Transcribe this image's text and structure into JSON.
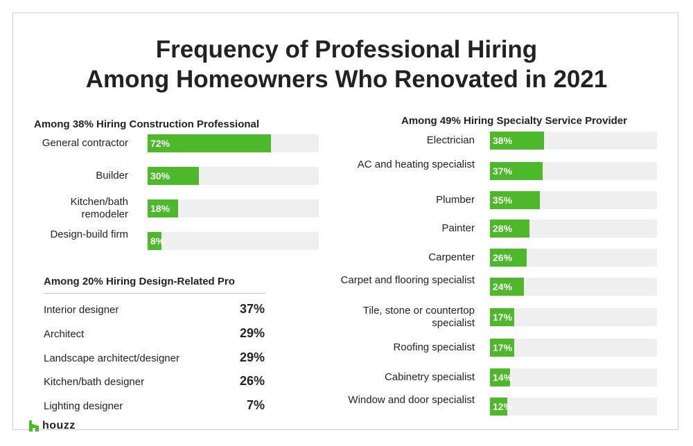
{
  "title": {
    "line1": "Frequency of Professional Hiring",
    "line2": "Among Homeowners Who Renovated in 2021"
  },
  "colors": {
    "bar": "#4cb82a",
    "track": "#efefef",
    "logo": "#4cb82a"
  },
  "logo_text": "houzz",
  "chart_data": [
    {
      "type": "bar",
      "orientation": "horizontal",
      "title": "Among 38% Hiring Construction Professional",
      "categories": [
        "General contractor",
        "Builder",
        "Kitchen/bath remodeler",
        "Design-build firm"
      ],
      "values": [
        72,
        30,
        18,
        8
      ],
      "value_labels": [
        "72%",
        "30%",
        "18%",
        "8%"
      ],
      "xlim": [
        0,
        100
      ],
      "grid": false
    },
    {
      "type": "table",
      "title": "Among 20% Hiring Design-Related Pro",
      "categories": [
        "Interior designer",
        "Architect",
        "Landscape architect/designer",
        "Kitchen/bath designer",
        "Lighting designer"
      ],
      "values": [
        37,
        29,
        29,
        26,
        7
      ],
      "value_labels": [
        "37%",
        "29%",
        "29%",
        "26%",
        "7%"
      ]
    },
    {
      "type": "bar",
      "orientation": "horizontal",
      "title": "Among 49% Hiring Specialty Service Provider",
      "categories": [
        "Electrician",
        "AC and heating specialist",
        "Plumber",
        "Painter",
        "Carpenter",
        "Carpet and flooring specialist",
        "Tile, stone or countertop specialist",
        "Roofing specialist",
        "Cabinetry specialist",
        "Window and door specialist"
      ],
      "values": [
        38,
        37,
        35,
        28,
        26,
        24,
        17,
        17,
        14,
        12
      ],
      "value_labels": [
        "38%",
        "37%",
        "35%",
        "28%",
        "26%",
        "24%",
        "17%",
        "17%",
        "14%",
        "12%"
      ],
      "xlim": [
        0,
        100
      ],
      "grid": false
    }
  ]
}
